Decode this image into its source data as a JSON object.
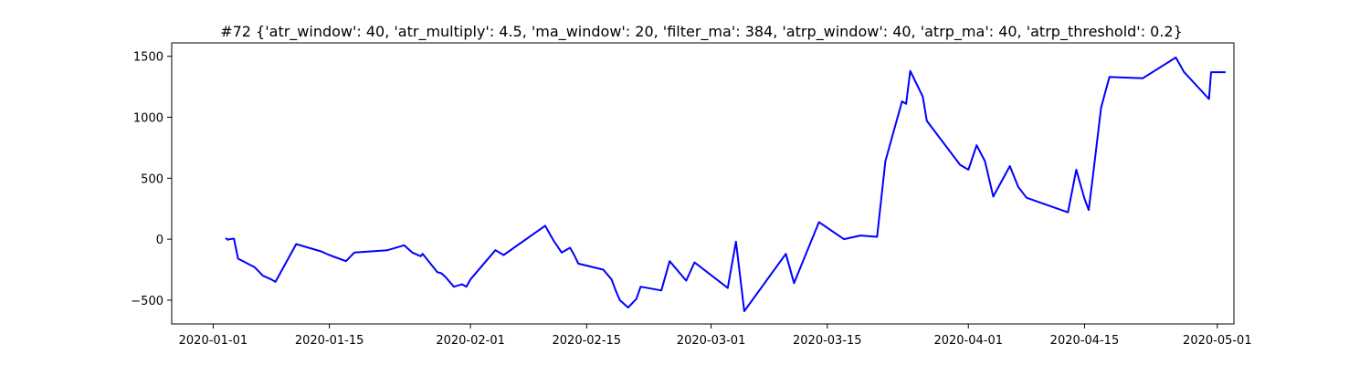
{
  "chart_data": {
    "type": "line",
    "title": "#72 {'atr_window': 40, 'atr_multiply': 4.5, 'ma_window': 20, 'filter_ma': 384, 'atrp_window': 40, 'atrp_ma': 40, 'atrp_threshold': 0.2}",
    "xlabel": "",
    "ylabel": "",
    "x_axis_type": "date",
    "xlim": [
      "2019-12-27",
      "2020-05-03"
    ],
    "ylim": [
      -695,
      1610
    ],
    "xticks": [
      "2020-01-01",
      "2020-01-15",
      "2020-02-01",
      "2020-02-15",
      "2020-03-01",
      "2020-03-15",
      "2020-04-01",
      "2020-04-15",
      "2020-05-01"
    ],
    "yticks": [
      -500,
      0,
      500,
      1000,
      1500
    ],
    "grid": false,
    "line_color": "#0000ff",
    "series": [
      {
        "x": [
          "2020-01-02 12:00",
          "2020-01-02 18:00",
          "2020-01-03 00:00",
          "2020-01-03 12:00",
          "2020-01-04 00:00",
          "2020-01-06",
          "2020-01-07",
          "2020-01-08",
          "2020-01-08 12:00",
          "2020-01-11",
          "2020-01-14",
          "2020-01-15",
          "2020-01-17",
          "2020-01-18",
          "2020-01-22",
          "2020-01-24",
          "2020-01-25",
          "2020-01-26",
          "2020-01-26 06:00",
          "2020-01-28",
          "2020-01-28 12:00",
          "2020-01-29",
          "2020-01-30",
          "2020-01-31",
          "2020-01-31 12:00",
          "2020-02-01",
          "2020-02-03",
          "2020-02-04",
          "2020-02-05",
          "2020-02-10",
          "2020-02-11",
          "2020-02-12",
          "2020-02-13",
          "2020-02-13 12:00",
          "2020-02-14",
          "2020-02-17",
          "2020-02-18",
          "2020-02-18 12:00",
          "2020-02-19",
          "2020-02-20",
          "2020-02-21",
          "2020-02-21 12:00",
          "2020-02-24",
          "2020-02-25",
          "2020-02-27",
          "2020-02-28",
          "2020-03-03",
          "2020-03-04",
          "2020-03-05",
          "2020-03-10",
          "2020-03-11",
          "2020-03-14",
          "2020-03-17",
          "2020-03-19",
          "2020-03-21",
          "2020-03-22",
          "2020-03-24",
          "2020-03-24 12:00",
          "2020-03-25",
          "2020-03-26 12:00",
          "2020-03-27",
          "2020-03-31",
          "2020-04-01",
          "2020-04-02",
          "2020-04-03",
          "2020-04-04",
          "2020-04-06",
          "2020-04-07",
          "2020-04-08",
          "2020-04-13",
          "2020-04-14",
          "2020-04-14 12:00",
          "2020-04-15",
          "2020-04-15 12:00",
          "2020-04-16",
          "2020-04-17",
          "2020-04-18",
          "2020-04-22",
          "2020-04-26",
          "2020-04-27",
          "2020-04-30",
          "2020-04-30 06:00",
          "2020-04-30 12:00",
          "2020-05-02"
        ],
        "y": [
          10,
          -5,
          0,
          5,
          -160,
          -230,
          -300,
          -330,
          -350,
          -40,
          -100,
          -130,
          -180,
          -110,
          -90,
          -50,
          -110,
          -140,
          -120,
          -270,
          -280,
          -310,
          -390,
          -370,
          -390,
          -330,
          -170,
          -90,
          -130,
          110,
          -10,
          -110,
          -70,
          -130,
          -200,
          -250,
          -330,
          -420,
          -500,
          -560,
          -490,
          -390,
          -420,
          -180,
          -340,
          -190,
          -400,
          -20,
          -590,
          -120,
          -360,
          140,
          0,
          30,
          20,
          640,
          1130,
          1110,
          1380,
          1170,
          970,
          610,
          570,
          770,
          640,
          350,
          600,
          430,
          340,
          220,
          570,
          450,
          330,
          240,
          510,
          1080,
          1330,
          1320,
          1490,
          1370,
          1150,
          1370,
          1370,
          1370
        ]
      }
    ]
  }
}
